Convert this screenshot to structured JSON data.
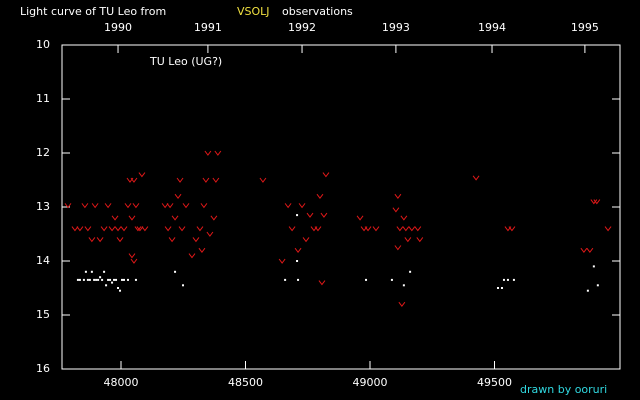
{
  "chart_data": {
    "type": "scatter",
    "title": "Light curve of TU Leo from",
    "source": "VSOLJ",
    "title_suffix": "observations",
    "annotation": "TU Leo (UG?)",
    "credit": "drawn by ooruri",
    "xlim": [
      47763,
      50004
    ],
    "xticks": [
      48000,
      48500,
      49000,
      49500
    ],
    "ylim": [
      16,
      10
    ],
    "yticks": [
      10,
      11,
      12,
      13,
      14,
      15,
      16
    ],
    "x2ticks": [
      {
        "value": 47988,
        "label": "1990"
      },
      {
        "value": 48349,
        "label": "1991"
      },
      {
        "value": 48727,
        "label": "1992"
      },
      {
        "value": 49104,
        "label": "1993"
      },
      {
        "value": 49490,
        "label": "1994"
      },
      {
        "value": 49863,
        "label": "1995"
      }
    ],
    "series": [
      {
        "marker": "v",
        "color": "#e01818",
        "x": [
          47787,
          47815,
          47835,
          47855,
          47867,
          47883,
          47896,
          47916,
          47932,
          47948,
          47964,
          47976,
          47988,
          47996,
          48012,
          48028,
          48036,
          48044,
          48052,
          48060,
          48068,
          48076,
          48084,
          48096,
          48044,
          48052,
          48177,
          48189,
          48197,
          48205,
          48217,
          48229,
          48237,
          48245,
          48261,
          48285,
          48301,
          48317,
          48325,
          48333,
          48341,
          48349,
          48357,
          48373,
          48381,
          48389,
          48570,
          48647,
          48671,
          48687,
          48711,
          48727,
          48743,
          48759,
          48775,
          48791,
          48799,
          48807,
          48815,
          48823,
          48960,
          48976,
          48992,
          49024,
          49104,
          49112,
          49120,
          49128,
          49136,
          49144,
          49152,
          49168,
          49192,
          49200,
          49112,
          49426,
          49554,
          49570,
          49859,
          49883,
          49899,
          49911,
          49956
        ],
        "y": [
          12.97,
          13.4,
          13.4,
          12.97,
          13.4,
          13.6,
          12.97,
          13.6,
          13.4,
          12.97,
          13.4,
          13.2,
          13.4,
          13.6,
          13.4,
          12.97,
          12.5,
          13.2,
          12.5,
          12.97,
          13.4,
          13.4,
          12.4,
          13.4,
          13.9,
          14.0,
          12.97,
          13.4,
          12.97,
          13.6,
          13.2,
          12.8,
          12.5,
          13.4,
          12.97,
          13.9,
          13.6,
          13.4,
          13.8,
          12.97,
          12.5,
          12.0,
          13.5,
          13.2,
          12.5,
          12.0,
          12.5,
          14.0,
          12.97,
          13.4,
          13.8,
          12.97,
          13.6,
          13.15,
          13.4,
          13.4,
          12.8,
          14.4,
          13.15,
          12.4,
          13.2,
          13.4,
          13.4,
          13.4,
          13.05,
          12.8,
          13.4,
          14.8,
          13.2,
          13.4,
          13.6,
          13.4,
          13.4,
          13.6,
          13.75,
          12.46,
          13.4,
          13.4,
          13.8,
          13.8,
          12.9,
          12.9,
          13.4
        ]
      },
      {
        "marker": "dot",
        "color": "#ffffff",
        "x": [
          47827,
          47835,
          47851,
          47859,
          47867,
          47875,
          47883,
          47892,
          47900,
          47908,
          47916,
          47924,
          47932,
          47940,
          47948,
          47956,
          47964,
          47972,
          47980,
          47988,
          47996,
          48004,
          48012,
          48028,
          48060,
          48217,
          48249,
          48659,
          48707,
          48707,
          48711,
          48984,
          49088,
          49136,
          49161,
          49514,
          49530,
          49538,
          49554,
          49578,
          49875,
          49899,
          49915
        ],
        "y": [
          14.35,
          14.35,
          14.35,
          14.2,
          14.35,
          14.35,
          14.2,
          14.35,
          14.35,
          14.35,
          14.3,
          14.35,
          14.2,
          14.45,
          14.35,
          14.35,
          14.4,
          14.35,
          14.35,
          14.5,
          14.55,
          14.35,
          14.35,
          14.35,
          14.35,
          14.2,
          14.45,
          14.35,
          13.15,
          14.0,
          14.35,
          14.35,
          14.35,
          14.45,
          14.2,
          14.5,
          14.5,
          14.35,
          14.35,
          14.35,
          14.55,
          14.1,
          14.45
        ]
      }
    ]
  }
}
